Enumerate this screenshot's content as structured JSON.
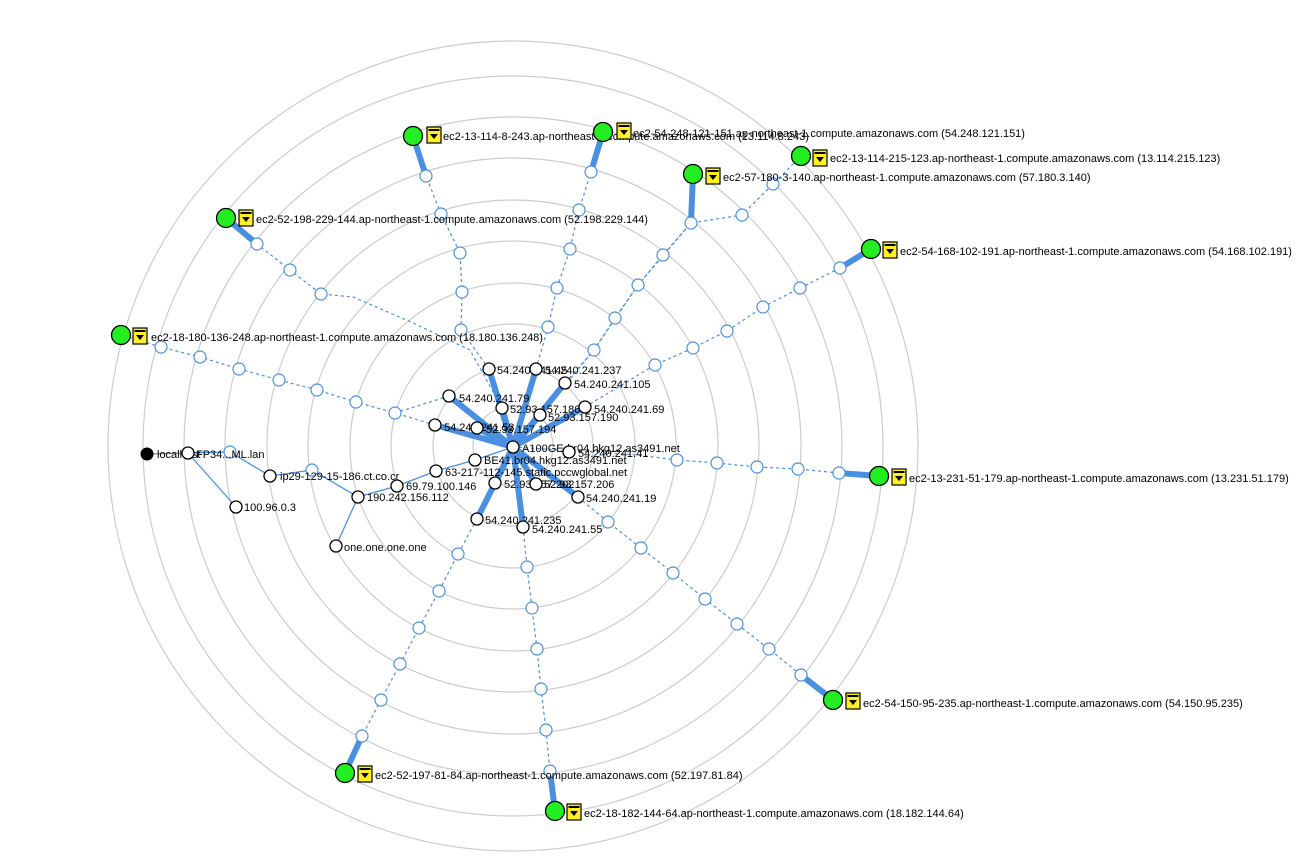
{
  "colors": {
    "ring": "#cccccc",
    "link": "#4a90e2",
    "target_node": "#22ee22",
    "lock": "#ffee22"
  },
  "local_host": {
    "label": "localhost"
  },
  "extra_labels": [
    {
      "label": "FP34...ML.lan"
    }
  ],
  "routers": [
    {
      "label": "ip29-129-15-186.ct.co.cr"
    },
    {
      "label": "100.96.0.3"
    },
    {
      "label": "190.242.156.112"
    },
    {
      "label": "69.79.100.146"
    },
    {
      "label": "one.one.one.one"
    },
    {
      "label": "63-217-112-145.static.pccwglobal.net"
    },
    {
      "label": "BE41.br04.hkg12.as3491.net"
    },
    {
      "label": "A100GE-br04.hkg12.as3491.net"
    },
    {
      "label": "54.240.241.79"
    },
    {
      "label": "54.240.241.53"
    },
    {
      "label": "52.93.157.194"
    },
    {
      "label": "54.240.241.45"
    },
    {
      "label": "54.240.241.237"
    },
    {
      "label": "54.240.241.105"
    },
    {
      "label": "52.93.157.186"
    },
    {
      "label": "52.93.157.190"
    },
    {
      "label": "54.240.241.69"
    },
    {
      "label": "54.240.241.41"
    },
    {
      "label": "52.93.157.202"
    },
    {
      "label": "52.93.157.206"
    },
    {
      "label": "54.240.241.19"
    },
    {
      "label": "54.240.241.235"
    },
    {
      "label": "54.240.241.55"
    }
  ],
  "targets": [
    {
      "label": "ec2-13-114-8-243.ap-northeast-1.compute.amazonaws.com (13.114.8.243)",
      "icon": "lock-icon"
    },
    {
      "label": "ec2-54-248-121-151.ap-northeast-1.compute.amazonaws.com (54.248.121.151)",
      "icon": "lock-icon"
    },
    {
      "label": "ec2-13-114-215-123.ap-northeast-1.compute.amazonaws.com (13.114.215.123)",
      "icon": "lock-icon"
    },
    {
      "label": "ec2-57-180-3-140.ap-northeast-1.compute.amazonaws.com (57.180.3.140)",
      "icon": "lock-icon"
    },
    {
      "label": "ec2-52-198-229-144.ap-northeast-1.compute.amazonaws.com (52.198.229.144)",
      "icon": "lock-icon"
    },
    {
      "label": "ec2-54-168-102-191.ap-northeast-1.compute.amazonaws.com (54.168.102.191)",
      "icon": "lock-icon"
    },
    {
      "label": "ec2-18-180-136-248.ap-northeast-1.compute.amazonaws.com (18.180.136.248)",
      "icon": "lock-icon"
    },
    {
      "label": "ec2-13-231-51-179.ap-northeast-1.compute.amazonaws.com (13.231.51.179)",
      "icon": "lock-icon"
    },
    {
      "label": "ec2-54-150-95-235.ap-northeast-1.compute.amazonaws.com (54.150.95.235)",
      "icon": "lock-icon"
    },
    {
      "label": "ec2-52-197-81-84.ap-northeast-1.compute.amazonaws.com (52.197.81.84)",
      "icon": "lock-icon"
    },
    {
      "label": "ec2-18-182-144-64.ap-northeast-1.compute.amazonaws.com (18.182.144.64)",
      "icon": "lock-icon"
    }
  ]
}
